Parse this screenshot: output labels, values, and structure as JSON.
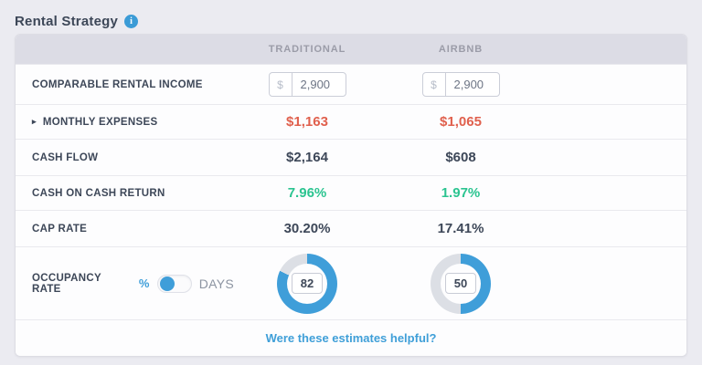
{
  "header": {
    "title": "Rental Strategy"
  },
  "table": {
    "columns": [
      "TRADITIONAL",
      "AIRBNB"
    ],
    "rows": {
      "income": {
        "label": "COMPARABLE RENTAL INCOME",
        "currency_symbol": "$",
        "traditional_value": "2,900",
        "airbnb_value": "2,900"
      },
      "expenses": {
        "label": "MONTHLY EXPENSES",
        "traditional": "$1,163",
        "airbnb": "$1,065"
      },
      "cash_flow": {
        "label": "CASH FLOW",
        "traditional": "$2,164",
        "airbnb": "$608"
      },
      "cash_on_cash": {
        "label": "CASH ON CASH RETURN",
        "traditional": "7.96%",
        "airbnb": "1.97%"
      },
      "cap_rate": {
        "label": "CAP RATE",
        "traditional": "30.20%",
        "airbnb": "17.41%"
      },
      "occupancy": {
        "label": "OCCUPANCY RATE",
        "toggle_left": "%",
        "toggle_right": "Days",
        "selected_unit": "%",
        "traditional": 82,
        "airbnb": 50
      }
    }
  },
  "footer": {
    "link_label": "Were these estimates helpful?"
  },
  "colors": {
    "accent_blue": "#3f9ed9",
    "donut_track": "#dcdfe5",
    "negative_red": "#e0604d",
    "positive_green": "#2bc490"
  }
}
